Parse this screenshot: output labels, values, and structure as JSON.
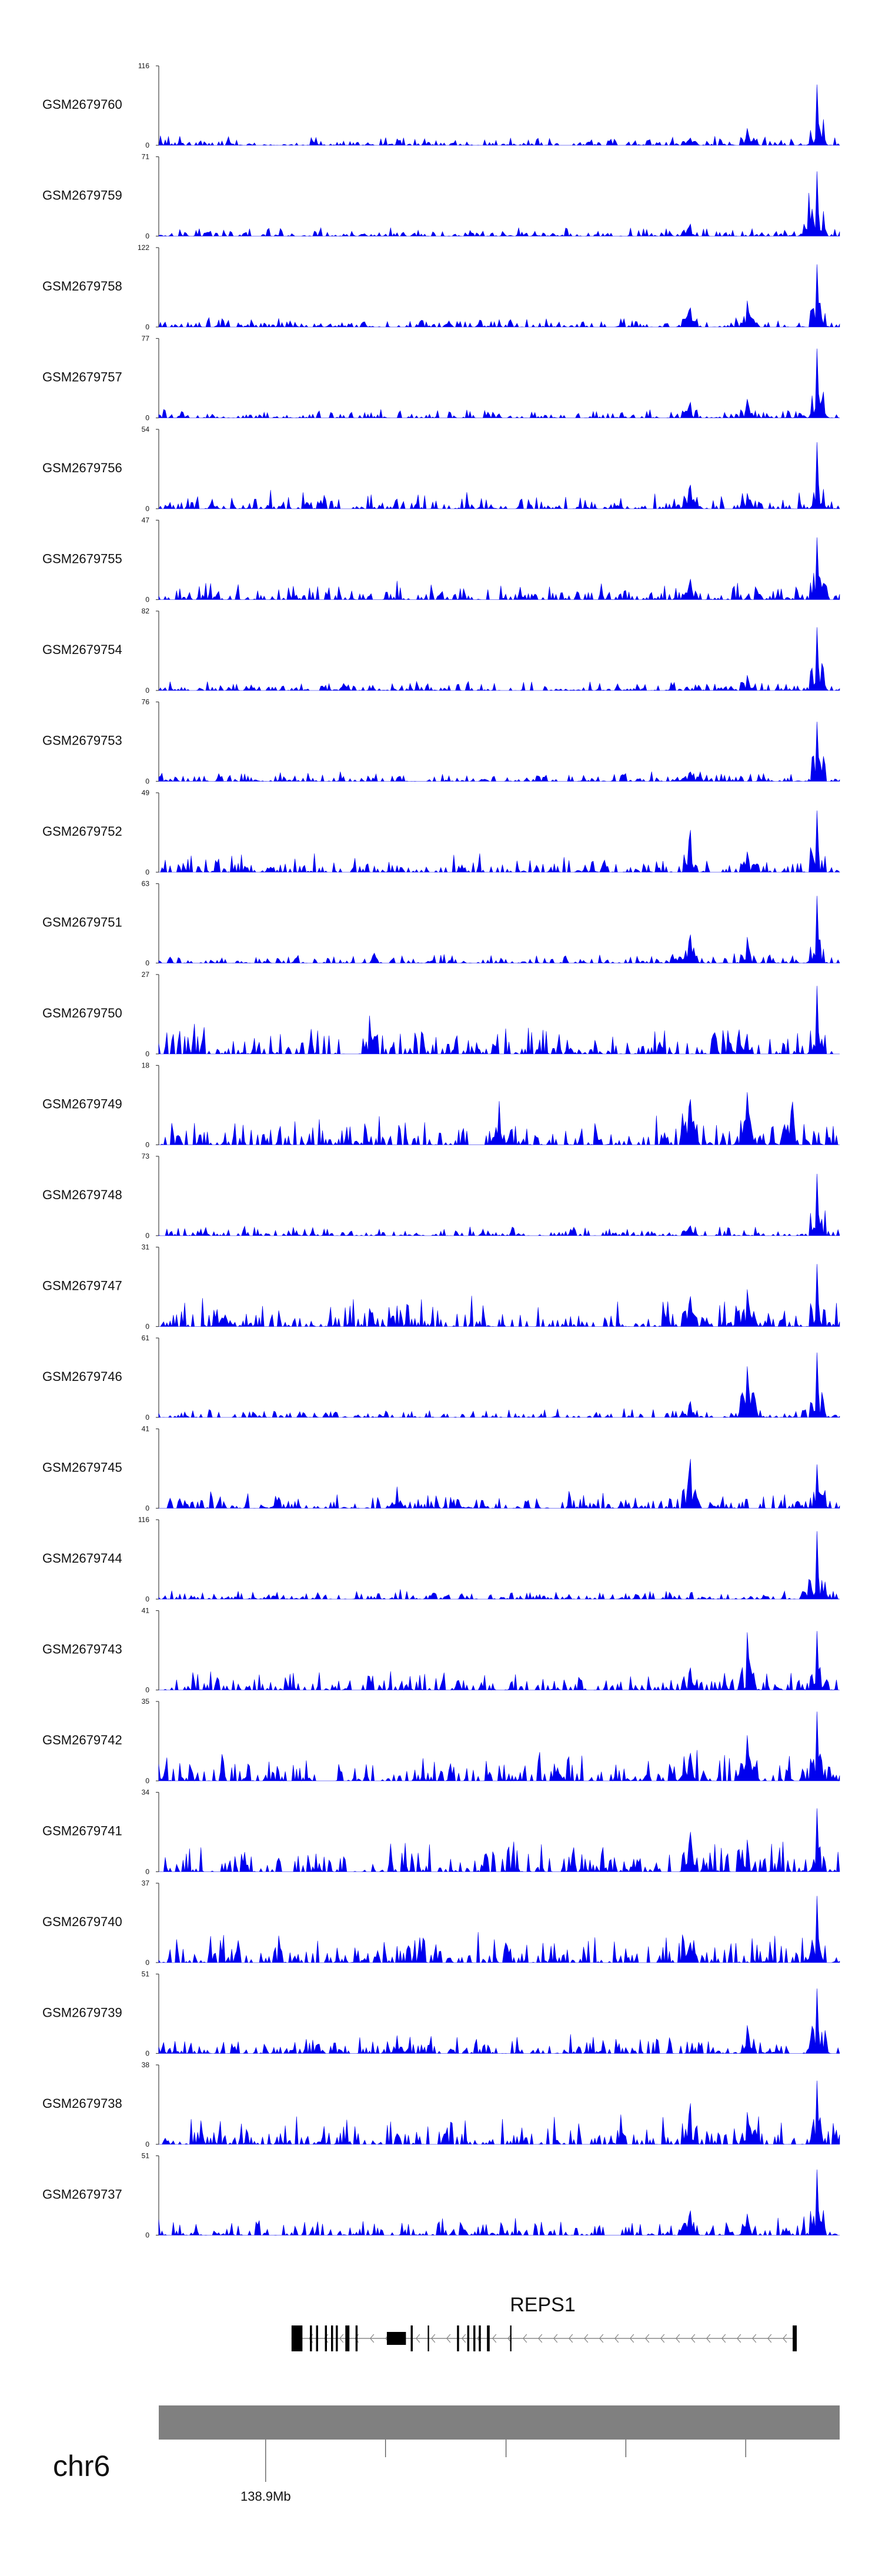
{
  "chart_data": {
    "type": "area",
    "fill_color": "#0000ee",
    "axis_color": "#444444",
    "ylim_min": 0,
    "tracks": [
      {
        "name": "GSM2679760",
        "ymax": 116,
        "seed": 760,
        "peaks": [
          {
            "x": 0.967,
            "v": 1.0
          },
          {
            "x": 0.865,
            "v": 0.32
          },
          {
            "x": 0.78,
            "v": 0.15
          }
        ]
      },
      {
        "name": "GSM2679759",
        "ymax": 71,
        "seed": 759,
        "peaks": [
          {
            "x": 0.967,
            "v": 1.0
          },
          {
            "x": 0.955,
            "v": 0.7
          },
          {
            "x": 0.78,
            "v": 0.25
          }
        ]
      },
      {
        "name": "GSM2679758",
        "ymax": 122,
        "seed": 758,
        "peaks": [
          {
            "x": 0.967,
            "v": 1.0
          },
          {
            "x": 0.865,
            "v": 0.45
          },
          {
            "x": 0.78,
            "v": 0.4
          }
        ]
      },
      {
        "name": "GSM2679757",
        "ymax": 77,
        "seed": 757,
        "peaks": [
          {
            "x": 0.967,
            "v": 1.0
          },
          {
            "x": 0.865,
            "v": 0.35
          },
          {
            "x": 0.78,
            "v": 0.3
          }
        ]
      },
      {
        "name": "GSM2679756",
        "ymax": 54,
        "seed": 756,
        "peaks": [
          {
            "x": 0.967,
            "v": 1.0
          },
          {
            "x": 0.78,
            "v": 0.5
          },
          {
            "x": 0.865,
            "v": 0.3
          }
        ]
      },
      {
        "name": "GSM2679755",
        "ymax": 47,
        "seed": 755,
        "peaks": [
          {
            "x": 0.967,
            "v": 1.0
          },
          {
            "x": 0.78,
            "v": 0.4
          }
        ]
      },
      {
        "name": "GSM2679754",
        "ymax": 82,
        "seed": 754,
        "peaks": [
          {
            "x": 0.967,
            "v": 1.0
          },
          {
            "x": 0.865,
            "v": 0.3
          }
        ]
      },
      {
        "name": "GSM2679753",
        "ymax": 76,
        "seed": 753,
        "peaks": [
          {
            "x": 0.967,
            "v": 1.0
          },
          {
            "x": 0.78,
            "v": 0.2
          }
        ]
      },
      {
        "name": "GSM2679752",
        "ymax": 49,
        "seed": 752,
        "peaks": [
          {
            "x": 0.967,
            "v": 1.0
          },
          {
            "x": 0.78,
            "v": 0.8
          },
          {
            "x": 0.865,
            "v": 0.4
          }
        ]
      },
      {
        "name": "GSM2679751",
        "ymax": 63,
        "seed": 751,
        "peaks": [
          {
            "x": 0.967,
            "v": 1.0
          },
          {
            "x": 0.78,
            "v": 0.58
          },
          {
            "x": 0.865,
            "v": 0.5
          }
        ]
      },
      {
        "name": "GSM2679750",
        "ymax": 27,
        "seed": 750,
        "peaks": [
          {
            "x": 0.967,
            "v": 1.0
          },
          {
            "x": 0.31,
            "v": 0.65
          }
        ]
      },
      {
        "name": "GSM2679749",
        "ymax": 18,
        "seed": 749,
        "peaks": [
          {
            "x": 0.78,
            "v": 0.97
          },
          {
            "x": 0.865,
            "v": 0.95
          },
          {
            "x": 0.93,
            "v": 0.85
          },
          {
            "x": 0.5,
            "v": 0.65
          }
        ]
      },
      {
        "name": "GSM2679748",
        "ymax": 73,
        "seed": 748,
        "peaks": [
          {
            "x": 0.967,
            "v": 1.0
          },
          {
            "x": 0.78,
            "v": 0.22
          }
        ]
      },
      {
        "name": "GSM2679747",
        "ymax": 31,
        "seed": 747,
        "peaks": [
          {
            "x": 0.967,
            "v": 1.0
          },
          {
            "x": 0.78,
            "v": 0.6
          },
          {
            "x": 0.865,
            "v": 0.65
          }
        ]
      },
      {
        "name": "GSM2679746",
        "ymax": 61,
        "seed": 746,
        "peaks": [
          {
            "x": 0.967,
            "v": 1.0
          },
          {
            "x": 0.865,
            "v": 0.95
          },
          {
            "x": 0.78,
            "v": 0.3
          }
        ]
      },
      {
        "name": "GSM2679745",
        "ymax": 41,
        "seed": 745,
        "peaks": [
          {
            "x": 0.78,
            "v": 1.0
          },
          {
            "x": 0.967,
            "v": 0.7
          },
          {
            "x": 0.35,
            "v": 0.3
          }
        ]
      },
      {
        "name": "GSM2679744",
        "ymax": 116,
        "seed": 744,
        "peaks": [
          {
            "x": 0.967,
            "v": 1.0
          },
          {
            "x": 0.955,
            "v": 0.3
          }
        ]
      },
      {
        "name": "GSM2679743",
        "ymax": 41,
        "seed": 743,
        "peaks": [
          {
            "x": 0.865,
            "v": 1.0
          },
          {
            "x": 0.967,
            "v": 0.95
          },
          {
            "x": 0.78,
            "v": 0.45
          }
        ]
      },
      {
        "name": "GSM2679742",
        "ymax": 35,
        "seed": 742,
        "peaks": [
          {
            "x": 0.967,
            "v": 1.0
          },
          {
            "x": 0.78,
            "v": 0.6
          },
          {
            "x": 0.865,
            "v": 0.8
          }
        ]
      },
      {
        "name": "GSM2679741",
        "ymax": 34,
        "seed": 741,
        "peaks": [
          {
            "x": 0.967,
            "v": 1.0
          },
          {
            "x": 0.78,
            "v": 0.75
          },
          {
            "x": 0.865,
            "v": 0.6
          }
        ]
      },
      {
        "name": "GSM2679740",
        "ymax": 37,
        "seed": 740,
        "peaks": [
          {
            "x": 0.967,
            "v": 1.0
          },
          {
            "x": 0.78,
            "v": 0.4
          }
        ]
      },
      {
        "name": "GSM2679739",
        "ymax": 51,
        "seed": 739,
        "peaks": [
          {
            "x": 0.967,
            "v": 1.0
          },
          {
            "x": 0.865,
            "v": 0.55
          },
          {
            "x": 0.35,
            "v": 0.25
          }
        ]
      },
      {
        "name": "GSM2679738",
        "ymax": 38,
        "seed": 738,
        "peaks": [
          {
            "x": 0.967,
            "v": 1.0
          },
          {
            "x": 0.78,
            "v": 0.85
          },
          {
            "x": 0.865,
            "v": 0.6
          }
        ]
      },
      {
        "name": "GSM2679737",
        "ymax": 51,
        "seed": 737,
        "peaks": [
          {
            "x": 0.967,
            "v": 1.0
          },
          {
            "x": 0.78,
            "v": 0.5
          },
          {
            "x": 0.865,
            "v": 0.4
          }
        ]
      }
    ],
    "gene": {
      "name": "REPS1",
      "strand": "-",
      "exons": [
        {
          "x": 0.195,
          "w": 0.014
        },
        {
          "x": 0.208,
          "w": 0.003
        },
        {
          "x": 0.222,
          "w": 0.003
        },
        {
          "x": 0.231,
          "w": 0.003
        },
        {
          "x": 0.244,
          "w": 0.003
        },
        {
          "x": 0.253,
          "w": 0.003
        },
        {
          "x": 0.26,
          "w": 0.003
        },
        {
          "x": 0.274,
          "w": 0.006
        },
        {
          "x": 0.289,
          "w": 0.003
        },
        {
          "x": 0.335,
          "w": 0.028
        },
        {
          "x": 0.37,
          "w": 0.003
        },
        {
          "x": 0.395,
          "w": 0.002
        },
        {
          "x": 0.438,
          "w": 0.003
        },
        {
          "x": 0.453,
          "w": 0.003
        },
        {
          "x": 0.462,
          "w": 0.003
        },
        {
          "x": 0.47,
          "w": 0.003
        },
        {
          "x": 0.482,
          "w": 0.004
        },
        {
          "x": 0.516,
          "w": 0.002
        },
        {
          "x": 0.931,
          "w": 0.006
        }
      ],
      "start": 0.195,
      "end": 0.937
    },
    "chromosome": "chr6",
    "axis_ticks": [
      {
        "pos": 0.157,
        "label": "138.9Mb"
      },
      {
        "pos": 0.333,
        "label": ""
      },
      {
        "pos": 0.51,
        "label": ""
      },
      {
        "pos": 0.686,
        "label": ""
      },
      {
        "pos": 0.862,
        "label": ""
      }
    ]
  }
}
